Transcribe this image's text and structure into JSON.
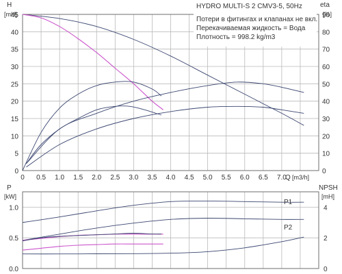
{
  "chart_data": [
    {
      "type": "line",
      "title": "HYDRO MULTI-S 2 CMV3-5, 50Hz",
      "info_lines": [
        "Потери в фитингах и клапанах не вкл.",
        "Перекачиваемая жидкость = Вода",
        "Плотность = 998.2 kg/m3"
      ],
      "xlabel": "Q",
      "xunit": "[m3/h]",
      "xlim": [
        0,
        8
      ],
      "x_ticks": [
        "0",
        "0.5",
        "1.0",
        "1.5",
        "2.0",
        "2.5",
        "3.0",
        "3.5",
        "4.0",
        "4.5",
        "5.0",
        "5.5",
        "6.0",
        "6.5",
        "7.0"
      ],
      "ylabel_left": "H",
      "yunit_left": "[mH]",
      "ylim_left": [
        0,
        45
      ],
      "y_ticks_left": [
        "0",
        "5",
        "10",
        "15",
        "20",
        "25",
        "30",
        "35",
        "40",
        "45"
      ],
      "ylabel_right": "eta",
      "yunit_right": "[%]",
      "ylim_right": [
        0,
        90
      ],
      "y_ticks_right": [
        "0",
        "10",
        "20",
        "30",
        "40",
        "50",
        "60",
        "70",
        "80",
        "90"
      ],
      "grid": true,
      "series": [
        {
          "axis": "left",
          "color": "#3a4670",
          "x": [
            0,
            1,
            2,
            3,
            4,
            5,
            6,
            7,
            7.6
          ],
          "values": [
            45,
            43.8,
            41.5,
            37.8,
            33,
            27.5,
            22,
            16.5,
            13
          ]
        },
        {
          "axis": "left",
          "color": "#cc55cc",
          "x": [
            0,
            0.5,
            1,
            1.5,
            2,
            2.5,
            3,
            3.5,
            3.8
          ],
          "values": [
            45,
            44,
            41.5,
            38,
            34,
            29.5,
            25,
            20,
            17.5
          ]
        },
        {
          "axis": "right",
          "color": "#3a4670",
          "x": [
            0,
            0.5,
            1,
            1.5,
            2,
            2.5,
            3,
            3.5,
            3.75
          ],
          "values": [
            0,
            22,
            36,
            44,
            49,
            51,
            51,
            47,
            43
          ]
        },
        {
          "axis": "right",
          "color": "#3a4670",
          "x": [
            0.1,
            0.5,
            1,
            1.5,
            2,
            2.5,
            2.9,
            3.3,
            3.75
          ],
          "values": [
            4,
            15,
            24,
            30,
            35,
            37,
            37,
            35,
            32
          ]
        },
        {
          "axis": "right",
          "color": "#3a4670",
          "x": [
            0.1,
            1,
            2,
            3,
            4,
            5,
            5.8,
            6.5,
            7,
            7.6
          ],
          "values": [
            4,
            24,
            33,
            40,
            45,
            49,
            51,
            50,
            48,
            45
          ]
        },
        {
          "axis": "right",
          "color": "#3a4670",
          "x": [
            0.1,
            1,
            2,
            3,
            4,
            5,
            5.8,
            6.5,
            7,
            7.6
          ],
          "values": [
            2,
            15,
            24,
            30,
            34,
            36.5,
            37,
            36.5,
            35,
            33
          ]
        }
      ]
    },
    {
      "type": "line",
      "xlim": [
        0,
        8
      ],
      "ylabel_left": "P",
      "yunit_left": "[kW]",
      "ylim_left": [
        0,
        1.25
      ],
      "y_ticks_left": [
        "0.0",
        "0.5",
        "1.0"
      ],
      "ylabel_right": "NPSH",
      "yunit_right": "[mH]",
      "ylim_right": [
        0,
        5
      ],
      "y_ticks_right": [
        "0",
        "2",
        "4"
      ],
      "grid": true,
      "series": [
        {
          "axis": "left",
          "name": "P1",
          "color": "#3a4670",
          "x": [
            0,
            1,
            2,
            3,
            4,
            5,
            6,
            7,
            7.6
          ],
          "values": [
            0.75,
            0.84,
            0.94,
            1.03,
            1.09,
            1.1,
            1.09,
            1.08,
            1.08
          ]
        },
        {
          "axis": "left",
          "name": "P2",
          "color": "#3a4670",
          "x": [
            0,
            1,
            2,
            3,
            4,
            5,
            6,
            7,
            7.6
          ],
          "values": [
            0.46,
            0.56,
            0.66,
            0.74,
            0.8,
            0.82,
            0.81,
            0.8,
            0.8
          ]
        },
        {
          "axis": "left",
          "color": "#cc55cc",
          "x": [
            0,
            0.5,
            1,
            1.5,
            2,
            2.5,
            3,
            3.5,
            3.8
          ],
          "values": [
            0.46,
            0.49,
            0.52,
            0.54,
            0.55,
            0.56,
            0.56,
            0.56,
            0.56
          ]
        },
        {
          "axis": "left",
          "color": "#cc55cc",
          "x": [
            0,
            0.5,
            1,
            1.5,
            2,
            2.5,
            3,
            3.5,
            3.8
          ],
          "values": [
            0.3,
            0.33,
            0.36,
            0.38,
            0.39,
            0.4,
            0.4,
            0.4,
            0.4
          ]
        },
        {
          "axis": "right",
          "color": "#3a4670",
          "x": [
            0,
            0.5,
            1,
            1.5,
            2,
            2.5,
            3,
            3.5,
            3.75
          ],
          "values": [
            1.8,
            2.0,
            2.1,
            2.15,
            2.2,
            2.25,
            2.3,
            2.25,
            2.25
          ]
        },
        {
          "axis": "right",
          "color": "#3a4670",
          "x": [
            0,
            1,
            2,
            3,
            4,
            5,
            6,
            7,
            7.6
          ],
          "values": [
            0.95,
            0.95,
            0.96,
            0.97,
            1.0,
            1.1,
            1.35,
            1.75,
            2.05
          ]
        }
      ]
    }
  ]
}
